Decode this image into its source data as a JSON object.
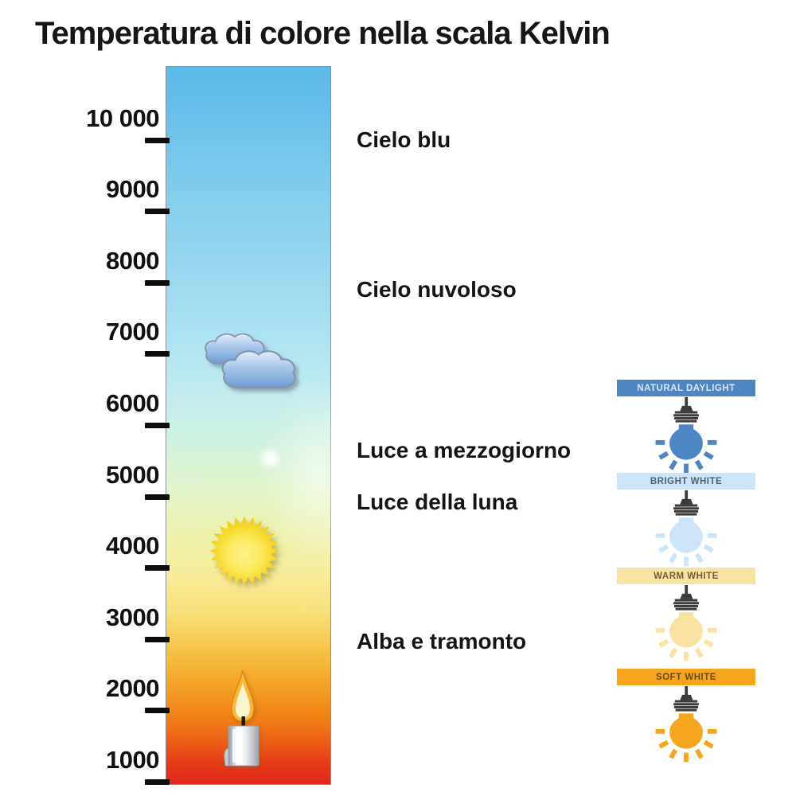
{
  "title": "Temperatura di colore nella scala Kelvin",
  "kelvin_scale": {
    "tick_labels": [
      "10 000",
      "9000",
      "8000",
      "7000",
      "6000",
      "5000",
      "4000",
      "3000",
      "2000",
      "1000"
    ]
  },
  "kelvin_bar": {
    "gradient_stops": [
      {
        "pct": 0,
        "color": "#5cb9e9"
      },
      {
        "pct": 7,
        "color": "#69c1ec"
      },
      {
        "pct": 18,
        "color": "#83cdee"
      },
      {
        "pct": 30,
        "color": "#9cdaf0"
      },
      {
        "pct": 38,
        "color": "#ace4f1"
      },
      {
        "pct": 46,
        "color": "#c0ecec"
      },
      {
        "pct": 53,
        "color": "#d3f2df"
      },
      {
        "pct": 59,
        "color": "#e3f5c9"
      },
      {
        "pct": 65,
        "color": "#eef2ad"
      },
      {
        "pct": 70,
        "color": "#f5ee9e"
      },
      {
        "pct": 76,
        "color": "#f8e07a"
      },
      {
        "pct": 81,
        "color": "#f7c64a"
      },
      {
        "pct": 86,
        "color": "#f4a426"
      },
      {
        "pct": 91,
        "color": "#f07e16"
      },
      {
        "pct": 95,
        "color": "#ea5517"
      },
      {
        "pct": 98,
        "color": "#e43318"
      },
      {
        "pct": 100,
        "color": "#e02818"
      }
    ]
  },
  "annotations": [
    {
      "label": "Cielo blu"
    },
    {
      "label": "Cielo nuvoloso"
    },
    {
      "label": "Luce a mezzogiorno"
    },
    {
      "label": "Luce della luna"
    },
    {
      "label": "Alba e tramonto"
    }
  ],
  "icons": {
    "clouds_icon": "clouds",
    "moon_icon": "moon",
    "sun_icon": "sun",
    "candle_icon": "lit candle"
  },
  "bulbs": [
    {
      "label": "NATURAL DAYLIGHT",
      "banner_bg": "#4d86c4",
      "banner_fg": "#d9e7f6",
      "bulb_color": "#4d86c4"
    },
    {
      "label": "BRIGHT WHITE",
      "banner_bg": "#cde5f8",
      "banner_fg": "#50606c",
      "bulb_color": "#cde5f8"
    },
    {
      "label": "WARM WHITE",
      "banner_bg": "#f9e3a2",
      "banner_fg": "#6e5e38",
      "bulb_color": "#f9e3a2"
    },
    {
      "label": "SOFT WHITE",
      "banner_bg": "#f6a61e",
      "banner_fg": "#6a4c12",
      "bulb_color": "#f6a61e"
    }
  ]
}
